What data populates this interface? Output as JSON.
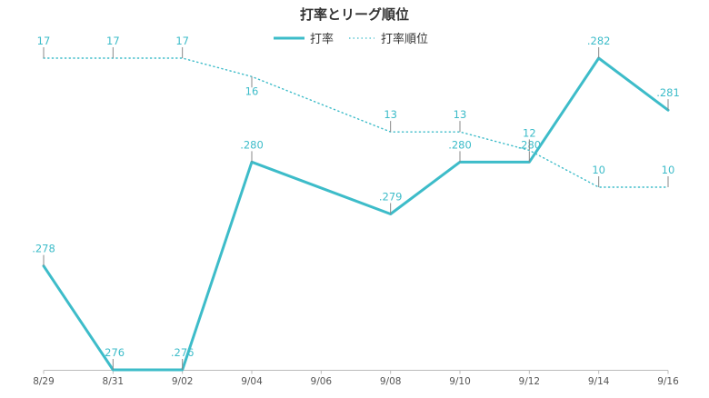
{
  "chart_data": {
    "type": "line",
    "title": "打率とリーグ順位",
    "categories": [
      "8/29",
      "8/31",
      "9/02",
      "9/04",
      "9/06",
      "9/08",
      "9/10",
      "9/12",
      "9/14",
      "9/16"
    ],
    "series": [
      {
        "name": "打率",
        "style": "solid",
        "color": "#3dbcc9",
        "points": [
          {
            "x": "8/29",
            "y": 0.278,
            "label": ".278"
          },
          {
            "x": "8/31",
            "y": 0.276,
            "label": ".276"
          },
          {
            "x": "9/02",
            "y": 0.276,
            "label": ".276"
          },
          {
            "x": "9/04",
            "y": 0.28,
            "label": ".280"
          },
          {
            "x": "9/08",
            "y": 0.279,
            "label": ".279"
          },
          {
            "x": "9/10",
            "y": 0.28,
            "label": ".280"
          },
          {
            "x": "9/12",
            "y": 0.28,
            "label": ".280"
          },
          {
            "x": "9/14",
            "y": 0.282,
            "label": ".282"
          },
          {
            "x": "9/16",
            "y": 0.281,
            "label": ".281"
          }
        ]
      },
      {
        "name": "打率順位",
        "style": "dotted",
        "color": "#3dbcc9",
        "points": [
          {
            "x": "8/29",
            "y": 17,
            "label": "17"
          },
          {
            "x": "8/31",
            "y": 17,
            "label": "17"
          },
          {
            "x": "9/02",
            "y": 17,
            "label": "17"
          },
          {
            "x": "9/04",
            "y": 16,
            "label": "16"
          },
          {
            "x": "9/08",
            "y": 13,
            "label": "13"
          },
          {
            "x": "9/10",
            "y": 13,
            "label": "13"
          },
          {
            "x": "9/12",
            "y": 12,
            "label": "12"
          },
          {
            "x": "9/14",
            "y": 10,
            "label": "10"
          },
          {
            "x": "9/16",
            "y": 10,
            "label": "10"
          }
        ]
      }
    ],
    "y_left": {
      "range": [
        0.276,
        0.282
      ],
      "visible": false
    },
    "y_right": {
      "range": [
        17,
        10
      ],
      "inverted": true,
      "visible": false
    },
    "grid": false,
    "legend_position": "top-center"
  }
}
